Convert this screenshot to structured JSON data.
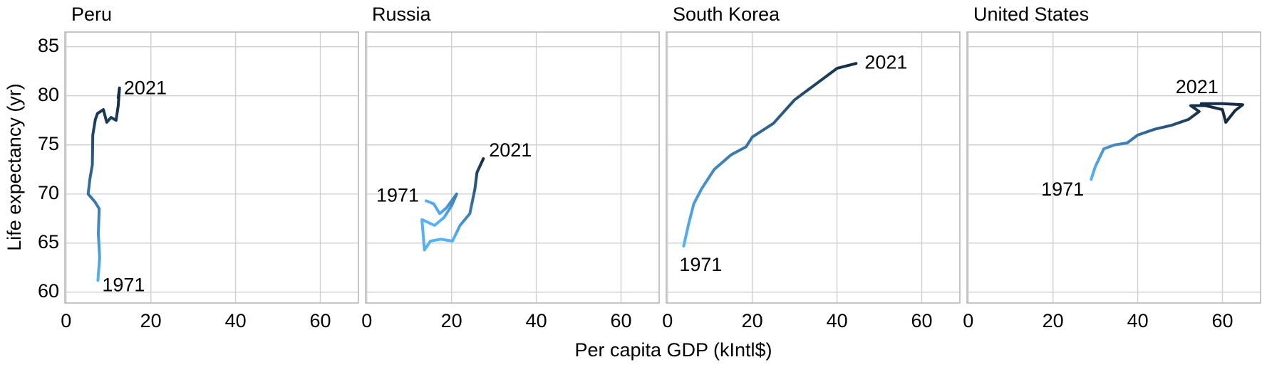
{
  "chart_data": [
    {
      "type": "line",
      "title": "Peru",
      "x": [
        7.5,
        7.9,
        7.6,
        7.8,
        6.8,
        5.2,
        5.6,
        6.2,
        6.3,
        6.9,
        7.4,
        8.8,
        9.4,
        9.6,
        10.6,
        11.8,
        12.3,
        12.6,
        12.3
      ],
      "values": [
        61.2,
        63.5,
        66.0,
        68.5,
        69.2,
        70.0,
        71.5,
        73.0,
        76.0,
        77.6,
        78.2,
        78.6,
        77.6,
        77.3,
        77.8,
        77.5,
        79.0,
        80.8,
        79.8
      ],
      "annotations": [
        "1971",
        "2021"
      ],
      "colors": [
        "#56B1F7",
        "#132B43"
      ],
      "xlim": [
        -0.3,
        69
      ],
      "ylim": [
        58.9,
        86.5
      ],
      "xticks": [
        0,
        20,
        40,
        60
      ],
      "yticks": [
        60,
        65,
        70,
        75,
        80,
        85
      ],
      "grid": true
    },
    {
      "type": "line",
      "title": "Russia",
      "x": [
        14.0,
        15.8,
        17.2,
        18.8,
        21.2,
        20.0,
        18.2,
        16.0,
        13.0,
        13.6,
        15.0,
        17.5,
        20.2,
        22.0,
        24.3,
        25.5,
        26.0,
        27.5
      ],
      "values": [
        69.3,
        69.0,
        68.0,
        68.6,
        70.0,
        68.8,
        67.6,
        66.8,
        67.4,
        64.3,
        65.2,
        65.4,
        65.2,
        66.8,
        68.0,
        70.5,
        72.2,
        73.6
      ],
      "annotations": [
        "1971",
        "2021"
      ],
      "colors": [
        "#56B1F7",
        "#132B43"
      ],
      "xlim": [
        -0.3,
        69
      ],
      "ylim": [
        58.9,
        86.5
      ],
      "xticks": [
        0,
        20,
        40,
        60
      ],
      "yticks": [
        60,
        65,
        70,
        75,
        80,
        85
      ],
      "grid": true
    },
    {
      "type": "line",
      "title": "South Korea",
      "x": [
        3.8,
        5.0,
        6.2,
        8.0,
        11.0,
        15.0,
        18.5,
        20.0,
        25.0,
        30.0,
        35.0,
        40.0,
        44.5
      ],
      "values": [
        64.7,
        67.0,
        69.0,
        70.5,
        72.5,
        74.0,
        74.8,
        75.8,
        77.2,
        79.6,
        81.2,
        82.8,
        83.3
      ],
      "annotations": [
        "1971",
        "2021"
      ],
      "colors": [
        "#56B1F7",
        "#132B43"
      ],
      "xlim": [
        -0.3,
        69
      ],
      "ylim": [
        58.9,
        86.5
      ],
      "xticks": [
        0,
        20,
        40,
        60
      ],
      "yticks": [
        60,
        65,
        70,
        75,
        80,
        85
      ],
      "grid": true
    },
    {
      "type": "line",
      "title": "United States",
      "x": [
        29.0,
        30.0,
        32.0,
        34.5,
        37.5,
        40.0,
        44.0,
        48.0,
        52.0,
        54.5,
        52.5,
        56.0,
        60.0,
        60.8,
        63.0,
        64.8,
        60.0,
        55.0
      ],
      "values": [
        71.5,
        72.8,
        74.6,
        75.0,
        75.2,
        76.0,
        76.6,
        77.0,
        77.6,
        78.4,
        79.0,
        79.0,
        78.6,
        77.3,
        78.5,
        79.1,
        79.2,
        79.2
      ],
      "annotations": [
        "1971",
        "2021"
      ],
      "colors": [
        "#56B1F7",
        "#132B43"
      ],
      "xlim": [
        -0.3,
        69
      ],
      "ylim": [
        58.9,
        86.5
      ],
      "xticks": [
        0,
        20,
        40,
        60
      ],
      "yticks": [
        60,
        65,
        70,
        75,
        80,
        85
      ],
      "grid": true
    }
  ],
  "xlabel": "Per capita GDP (kIntl$)",
  "ylabel": "Life expectancy (yr)"
}
